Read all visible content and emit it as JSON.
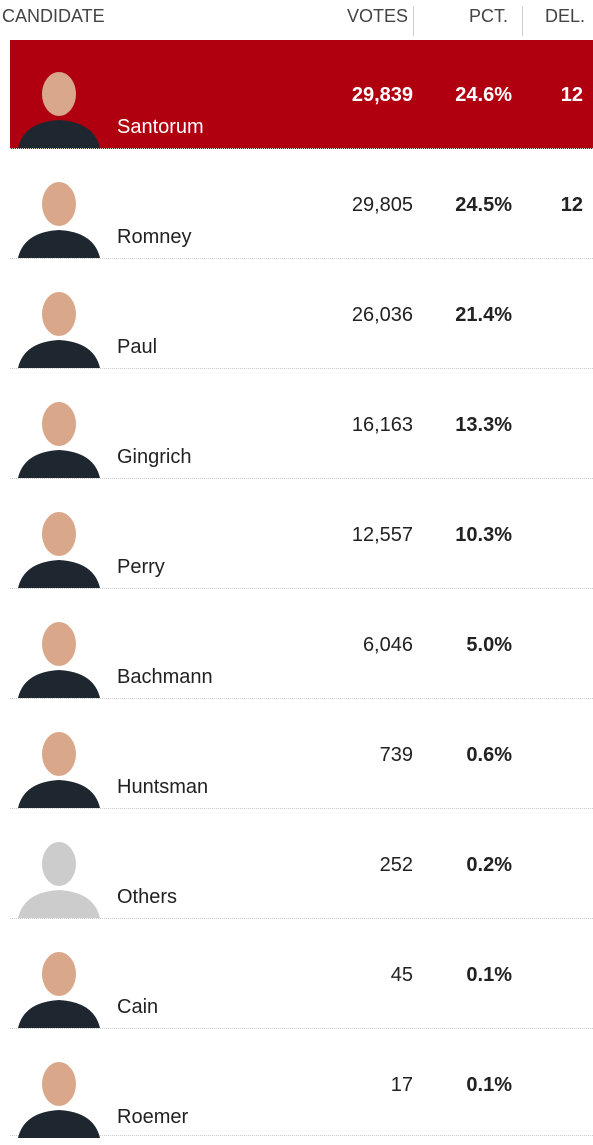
{
  "header": {
    "candidate": "CANDIDATE",
    "votes": "VOTES",
    "pct": "PCT.",
    "del": "DEL."
  },
  "rows": [
    {
      "name": "Santorum",
      "votes": "29,839",
      "pct": "24.6%",
      "del": "12",
      "winner": true
    },
    {
      "name": "Romney",
      "votes": "29,805",
      "pct": "24.5%",
      "del": "12"
    },
    {
      "name": "Paul",
      "votes": "26,036",
      "pct": "21.4%"
    },
    {
      "name": "Gingrich",
      "votes": "16,163",
      "pct": "13.3%"
    },
    {
      "name": "Perry",
      "votes": "12,557",
      "pct": "10.3%"
    },
    {
      "name": "Bachmann",
      "votes": "6,046",
      "pct": "5.0%"
    },
    {
      "name": "Huntsman",
      "votes": "739",
      "pct": "0.6%"
    },
    {
      "name": "Others",
      "votes": "252",
      "pct": "0.2%"
    },
    {
      "name": "Cain",
      "votes": "45",
      "pct": "0.1%"
    },
    {
      "name": "Roemer",
      "votes": "17",
      "pct": "0.1%"
    }
  ]
}
